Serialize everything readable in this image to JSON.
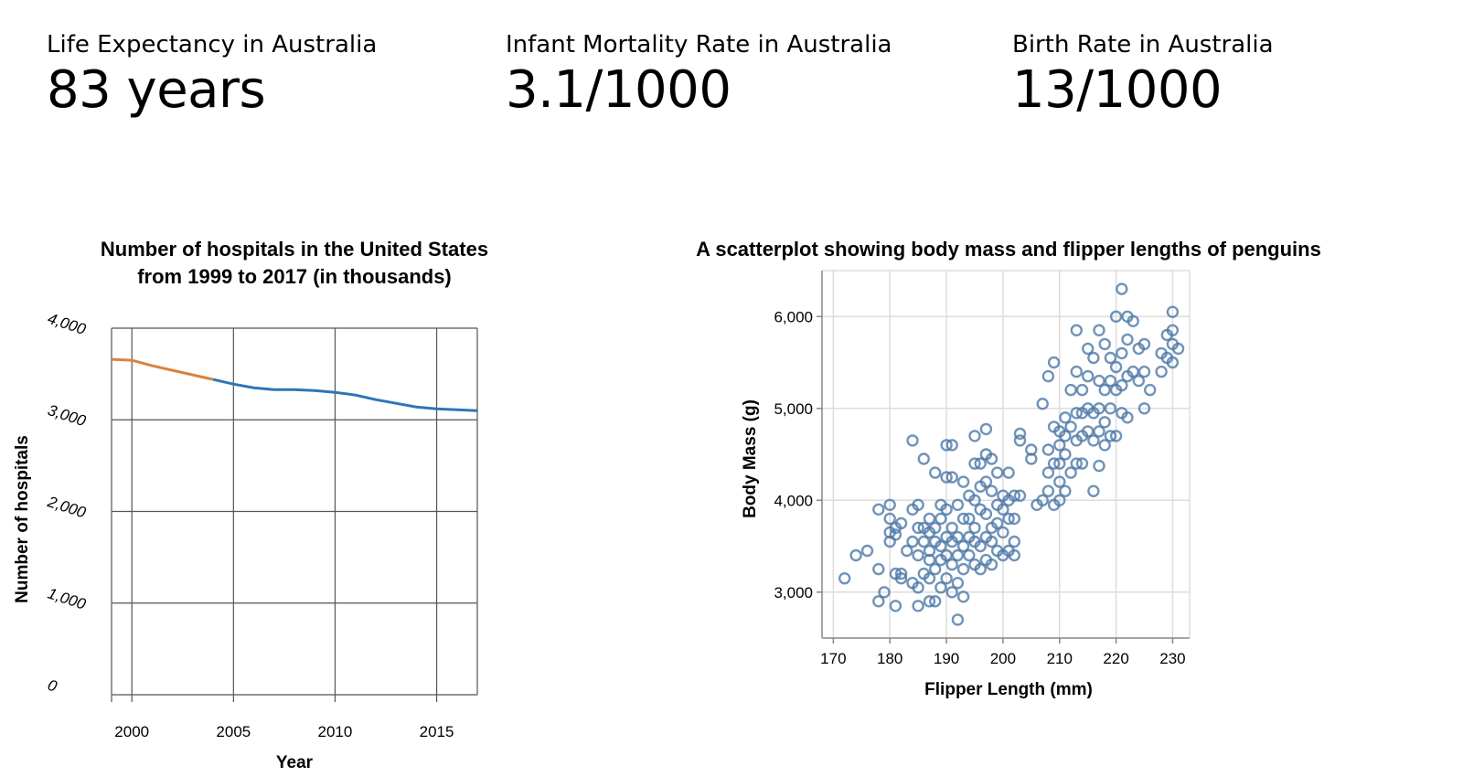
{
  "kpis": [
    {
      "label": "Life Expectancy in Australia",
      "value": "83 years"
    },
    {
      "label": "Infant Mortality Rate in Australia",
      "value": "3.1/1000"
    },
    {
      "label": "Birth Rate in Australia",
      "value": "13/1000"
    }
  ],
  "chart_data": [
    {
      "type": "line",
      "title": "Number of hospitals in the United States from 1999 to 2017 (in thousands)",
      "title_lines": [
        "Number of hospitals in the United States",
        "from 1999 to 2017 (in thousands)"
      ],
      "xlabel": "Year",
      "ylabel": "Number of hospitals",
      "xlim": [
        1999,
        2017
      ],
      "ylim": [
        0,
        4000
      ],
      "x_ticks": [
        2000,
        2005,
        2010,
        2015
      ],
      "y_ticks": [
        0,
        1000,
        2000,
        3000,
        4000
      ],
      "y_tick_labels": [
        "0",
        "1,000",
        "2,000",
        "3,000",
        "4,000"
      ],
      "grid": true,
      "colors": {
        "highlight": "#d9823f",
        "line": "#2e75b6"
      },
      "highlight_range": [
        1999,
        2004
      ],
      "x": [
        1999,
        2000,
        2001,
        2002,
        2003,
        2004,
        2005,
        2006,
        2007,
        2008,
        2009,
        2010,
        2011,
        2012,
        2013,
        2014,
        2015,
        2016,
        2017
      ],
      "values": [
        3660,
        3650,
        3590,
        3540,
        3490,
        3440,
        3390,
        3350,
        3330,
        3330,
        3320,
        3300,
        3270,
        3220,
        3180,
        3140,
        3120,
        3110,
        3100
      ]
    },
    {
      "type": "scatter",
      "title": "A scatterplot showing body mass and flipper lengths of penguins",
      "xlabel": "Flipper Length (mm)",
      "ylabel": "Body Mass (g)",
      "xlim": [
        168,
        233
      ],
      "ylim": [
        2500,
        6500
      ],
      "x_ticks": [
        170,
        180,
        190,
        200,
        210,
        220,
        230
      ],
      "y_ticks": [
        3000,
        4000,
        5000,
        6000
      ],
      "y_tick_labels": [
        "3,000",
        "4,000",
        "5,000",
        "6,000"
      ],
      "grid": true,
      "colors": {
        "point": "#4c78a8"
      },
      "points": [
        [
          172,
          3150
        ],
        [
          174,
          3400
        ],
        [
          176,
          3450
        ],
        [
          178,
          2900
        ],
        [
          178,
          3250
        ],
        [
          178,
          3900
        ],
        [
          179,
          3000
        ],
        [
          180,
          3550
        ],
        [
          180,
          3650
        ],
        [
          180,
          3800
        ],
        [
          180,
          3950
        ],
        [
          181,
          2850
        ],
        [
          181,
          3200
        ],
        [
          181,
          3625
        ],
        [
          181,
          3700
        ],
        [
          182,
          3150
        ],
        [
          182,
          3200
        ],
        [
          182,
          3750
        ],
        [
          183,
          3450
        ],
        [
          184,
          3100
        ],
        [
          184,
          3550
        ],
        [
          184,
          3900
        ],
        [
          184,
          4650
        ],
        [
          185,
          2850
        ],
        [
          185,
          3050
        ],
        [
          185,
          3400
        ],
        [
          185,
          3700
        ],
        [
          185,
          3950
        ],
        [
          186,
          3200
        ],
        [
          186,
          3550
        ],
        [
          186,
          3700
        ],
        [
          186,
          4450
        ],
        [
          187,
          2900
        ],
        [
          187,
          3150
        ],
        [
          187,
          3350
        ],
        [
          187,
          3450
        ],
        [
          187,
          3650
        ],
        [
          187,
          3800
        ],
        [
          188,
          2900
        ],
        [
          188,
          3250
        ],
        [
          188,
          3550
        ],
        [
          188,
          3700
        ],
        [
          188,
          4300
        ],
        [
          189,
          3050
        ],
        [
          189,
          3350
        ],
        [
          189,
          3500
        ],
        [
          189,
          3800
        ],
        [
          189,
          3950
        ],
        [
          190,
          3150
        ],
        [
          190,
          3400
        ],
        [
          190,
          3600
        ],
        [
          190,
          3900
        ],
        [
          190,
          4250
        ],
        [
          190,
          4600
        ],
        [
          191,
          3000
        ],
        [
          191,
          3300
        ],
        [
          191,
          3550
        ],
        [
          191,
          3700
        ],
        [
          191,
          4250
        ],
        [
          191,
          4600
        ],
        [
          192,
          2700
        ],
        [
          192,
          3100
        ],
        [
          192,
          3400
        ],
        [
          192,
          3600
        ],
        [
          192,
          3950
        ],
        [
          193,
          2950
        ],
        [
          193,
          3250
        ],
        [
          193,
          3500
        ],
        [
          193,
          3800
        ],
        [
          193,
          4200
        ],
        [
          194,
          3400
        ],
        [
          194,
          3600
        ],
        [
          194,
          3800
        ],
        [
          194,
          4050
        ],
        [
          195,
          3300
        ],
        [
          195,
          3550
        ],
        [
          195,
          3700
        ],
        [
          195,
          4000
        ],
        [
          195,
          4400
        ],
        [
          195,
          4700
        ],
        [
          196,
          3250
        ],
        [
          196,
          3500
        ],
        [
          196,
          3900
        ],
        [
          196,
          4150
        ],
        [
          196,
          4400
        ],
        [
          197,
          3350
        ],
        [
          197,
          3600
        ],
        [
          197,
          3850
        ],
        [
          197,
          4200
        ],
        [
          197,
          4500
        ],
        [
          197,
          4775
        ],
        [
          198,
          3300
        ],
        [
          198,
          3550
        ],
        [
          198,
          3700
        ],
        [
          198,
          4100
        ],
        [
          198,
          4450
        ],
        [
          199,
          3450
        ],
        [
          199,
          3750
        ],
        [
          199,
          3950
        ],
        [
          199,
          4300
        ],
        [
          200,
          3400
        ],
        [
          200,
          3650
        ],
        [
          200,
          3900
        ],
        [
          200,
          4050
        ],
        [
          201,
          3450
        ],
        [
          201,
          3800
        ],
        [
          201,
          4000
        ],
        [
          201,
          4300
        ],
        [
          202,
          3400
        ],
        [
          202,
          3550
        ],
        [
          202,
          3800
        ],
        [
          202,
          4050
        ],
        [
          203,
          4050
        ],
        [
          203,
          4650
        ],
        [
          203,
          4725
        ],
        [
          205,
          4450
        ],
        [
          205,
          4550
        ],
        [
          206,
          3950
        ],
        [
          207,
          4000
        ],
        [
          207,
          5050
        ],
        [
          208,
          4100
        ],
        [
          208,
          4300
        ],
        [
          208,
          4550
        ],
        [
          208,
          5350
        ],
        [
          209,
          3950
        ],
        [
          209,
          4400
        ],
        [
          209,
          4800
        ],
        [
          209,
          5500
        ],
        [
          210,
          4000
        ],
        [
          210,
          4200
        ],
        [
          210,
          4400
        ],
        [
          210,
          4600
        ],
        [
          210,
          4750
        ],
        [
          211,
          4100
        ],
        [
          211,
          4500
        ],
        [
          211,
          4700
        ],
        [
          211,
          4900
        ],
        [
          212,
          4300
        ],
        [
          212,
          4800
        ],
        [
          212,
          5200
        ],
        [
          213,
          4400
        ],
        [
          213,
          4650
        ],
        [
          213,
          4950
        ],
        [
          213,
          5400
        ],
        [
          213,
          5850
        ],
        [
          214,
          4400
        ],
        [
          214,
          4700
        ],
        [
          214,
          4950
        ],
        [
          214,
          5200
        ],
        [
          215,
          4750
        ],
        [
          215,
          5000
        ],
        [
          215,
          5350
        ],
        [
          215,
          5650
        ],
        [
          216,
          4100
        ],
        [
          216,
          4650
        ],
        [
          216,
          4950
        ],
        [
          216,
          5550
        ],
        [
          217,
          4375
        ],
        [
          217,
          4750
        ],
        [
          217,
          5000
        ],
        [
          217,
          5300
        ],
        [
          217,
          5850
        ],
        [
          218,
          4600
        ],
        [
          218,
          4850
        ],
        [
          218,
          5200
        ],
        [
          218,
          5700
        ],
        [
          219,
          4700
        ],
        [
          219,
          5000
        ],
        [
          219,
          5300
        ],
        [
          219,
          5550
        ],
        [
          220,
          4700
        ],
        [
          220,
          5200
        ],
        [
          220,
          5450
        ],
        [
          220,
          6000
        ],
        [
          221,
          4950
        ],
        [
          221,
          5250
        ],
        [
          221,
          5600
        ],
        [
          221,
          6300
        ],
        [
          222,
          4900
        ],
        [
          222,
          5350
        ],
        [
          222,
          5750
        ],
        [
          222,
          6000
        ],
        [
          223,
          5400
        ],
        [
          223,
          5950
        ],
        [
          224,
          5300
        ],
        [
          224,
          5650
        ],
        [
          225,
          5000
        ],
        [
          225,
          5400
        ],
        [
          225,
          5700
        ],
        [
          226,
          5200
        ],
        [
          228,
          5400
        ],
        [
          228,
          5600
        ],
        [
          229,
          5550
        ],
        [
          229,
          5800
        ],
        [
          230,
          5500
        ],
        [
          230,
          5700
        ],
        [
          230,
          5850
        ],
        [
          230,
          6050
        ],
        [
          231,
          5650
        ]
      ]
    }
  ]
}
